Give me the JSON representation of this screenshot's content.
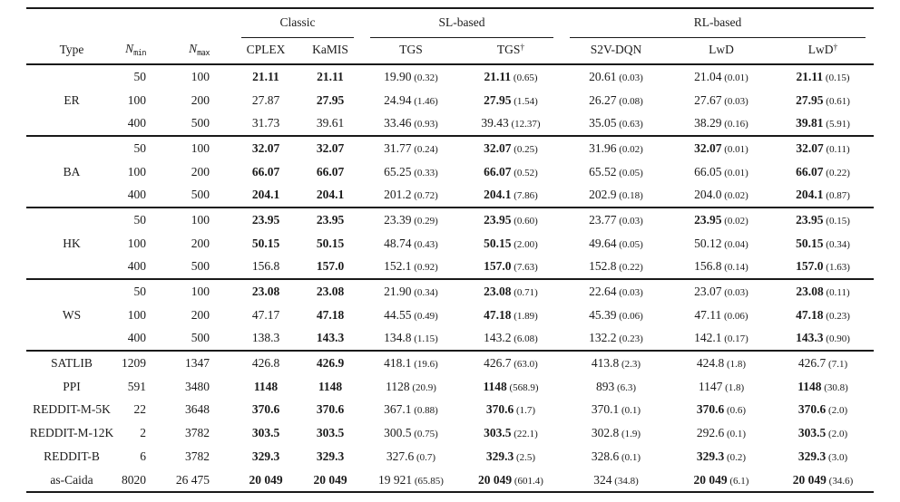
{
  "page": {
    "background": "#ffffff",
    "text_color": "#1b1b1b",
    "rule_color": "#191919"
  },
  "table": {
    "columns": {
      "type_label": "Type",
      "nmin": {
        "base": "N",
        "sub": "min"
      },
      "nmax": {
        "base": "N",
        "sub": "max"
      }
    },
    "groups": [
      {
        "label": "Classic",
        "columns": [
          {
            "name": "CPLEX",
            "sup": ""
          },
          {
            "name": "KaMIS",
            "sup": ""
          }
        ]
      },
      {
        "label": "SL-based",
        "columns": [
          {
            "name": "TGS",
            "sup": ""
          },
          {
            "name": "TGS",
            "sup": "†"
          }
        ]
      },
      {
        "label": "RL-based",
        "columns": [
          {
            "name": "S2V-DQN",
            "sup": ""
          },
          {
            "name": "LwD",
            "sup": ""
          },
          {
            "name": "LwD",
            "sup": "†"
          }
        ]
      }
    ],
    "value_column_keys": [
      "CPLEX",
      "KaMIS",
      "TGS",
      "TGS-dagger",
      "S2V-DQN",
      "LwD",
      "LwD-dagger"
    ],
    "blocks": [
      {
        "type": "ER",
        "rows": [
          {
            "nmin": "50",
            "nmax": "100",
            "cells": [
              {
                "v": "21.11",
                "b": true
              },
              {
                "v": "21.11",
                "b": true
              },
              {
                "v": "19.90",
                "s": "(0.32)"
              },
              {
                "v": "21.11",
                "s": "(0.65)",
                "b": true
              },
              {
                "v": "20.61",
                "s": "(0.03)"
              },
              {
                "v": "21.04",
                "s": "(0.01)"
              },
              {
                "v": "21.11",
                "s": "(0.15)",
                "b": true
              }
            ]
          },
          {
            "nmin": "100",
            "nmax": "200",
            "cells": [
              {
                "v": "27.87"
              },
              {
                "v": "27.95",
                "b": true
              },
              {
                "v": "24.94",
                "s": "(1.46)"
              },
              {
                "v": "27.95",
                "s": "(1.54)",
                "b": true
              },
              {
                "v": "26.27",
                "s": "(0.08)"
              },
              {
                "v": "27.67",
                "s": "(0.03)"
              },
              {
                "v": "27.95",
                "s": "(0.61)",
                "b": true
              }
            ]
          },
          {
            "nmin": "400",
            "nmax": "500",
            "cells": [
              {
                "v": "31.73"
              },
              {
                "v": "39.61"
              },
              {
                "v": "33.46",
                "s": "(0.93)"
              },
              {
                "v": "39.43",
                "s": "(12.37)"
              },
              {
                "v": "35.05",
                "s": "(0.63)"
              },
              {
                "v": "38.29",
                "s": "(0.16)"
              },
              {
                "v": "39.81",
                "s": "(5.91)",
                "b": true
              }
            ]
          }
        ]
      },
      {
        "type": "BA",
        "rows": [
          {
            "nmin": "50",
            "nmax": "100",
            "cells": [
              {
                "v": "32.07",
                "b": true
              },
              {
                "v": "32.07",
                "b": true
              },
              {
                "v": "31.77",
                "s": "(0.24)"
              },
              {
                "v": "32.07",
                "s": "(0.25)",
                "b": true
              },
              {
                "v": "31.96",
                "s": "(0.02)"
              },
              {
                "v": "32.07",
                "s": "(0.01)",
                "b": true
              },
              {
                "v": "32.07",
                "s": "(0.11)",
                "b": true
              }
            ]
          },
          {
            "nmin": "100",
            "nmax": "200",
            "cells": [
              {
                "v": "66.07",
                "b": true
              },
              {
                "v": "66.07",
                "b": true
              },
              {
                "v": "65.25",
                "s": "(0.33)"
              },
              {
                "v": "66.07",
                "s": "(0.52)",
                "b": true
              },
              {
                "v": "65.52",
                "s": "(0.05)"
              },
              {
                "v": "66.05",
                "s": "(0.01)"
              },
              {
                "v": "66.07",
                "s": "(0.22)",
                "b": true
              }
            ]
          },
          {
            "nmin": "400",
            "nmax": "500",
            "cells": [
              {
                "v": "204.1",
                "b": true
              },
              {
                "v": "204.1",
                "b": true
              },
              {
                "v": "201.2",
                "s": "(0.72)"
              },
              {
                "v": "204.1",
                "s": "(7.86)",
                "b": true
              },
              {
                "v": "202.9",
                "s": "(0.18)"
              },
              {
                "v": "204.0",
                "s": "(0.02)"
              },
              {
                "v": "204.1",
                "s": "(0.87)",
                "b": true
              }
            ]
          }
        ]
      },
      {
        "type": "HK",
        "rows": [
          {
            "nmin": "50",
            "nmax": "100",
            "cells": [
              {
                "v": "23.95",
                "b": true
              },
              {
                "v": "23.95",
                "b": true
              },
              {
                "v": "23.39",
                "s": "(0.29)"
              },
              {
                "v": "23.95",
                "s": "(0.60)",
                "b": true
              },
              {
                "v": "23.77",
                "s": "(0.03)"
              },
              {
                "v": "23.95",
                "s": "(0.02)",
                "b": true
              },
              {
                "v": "23.95",
                "s": "(0.15)",
                "b": true
              }
            ]
          },
          {
            "nmin": "100",
            "nmax": "200",
            "cells": [
              {
                "v": "50.15",
                "b": true
              },
              {
                "v": "50.15",
                "b": true
              },
              {
                "v": "48.74",
                "s": "(0.43)"
              },
              {
                "v": "50.15",
                "s": "(2.00)",
                "b": true
              },
              {
                "v": "49.64",
                "s": "(0.05)"
              },
              {
                "v": "50.12",
                "s": "(0.04)"
              },
              {
                "v": "50.15",
                "s": "(0.34)",
                "b": true
              }
            ]
          },
          {
            "nmin": "400",
            "nmax": "500",
            "cells": [
              {
                "v": "156.8"
              },
              {
                "v": "157.0",
                "b": true
              },
              {
                "v": "152.1",
                "s": "(0.92)"
              },
              {
                "v": "157.0",
                "s": "(7.63)",
                "b": true
              },
              {
                "v": "152.8",
                "s": "(0.22)"
              },
              {
                "v": "156.8",
                "s": "(0.14)"
              },
              {
                "v": "157.0",
                "s": "(1.63)",
                "b": true
              }
            ]
          }
        ]
      },
      {
        "type": "WS",
        "rows": [
          {
            "nmin": "50",
            "nmax": "100",
            "cells": [
              {
                "v": "23.08",
                "b": true
              },
              {
                "v": "23.08",
                "b": true
              },
              {
                "v": "21.90",
                "s": "(0.34)"
              },
              {
                "v": "23.08",
                "s": "(0.71)",
                "b": true
              },
              {
                "v": "22.64",
                "s": "(0.03)"
              },
              {
                "v": "23.07",
                "s": "(0.03)"
              },
              {
                "v": "23.08",
                "s": "(0.11)",
                "b": true
              }
            ]
          },
          {
            "nmin": "100",
            "nmax": "200",
            "cells": [
              {
                "v": "47.17"
              },
              {
                "v": "47.18",
                "b": true
              },
              {
                "v": "44.55",
                "s": "(0.49)"
              },
              {
                "v": "47.18",
                "s": "(1.89)",
                "b": true
              },
              {
                "v": "45.39",
                "s": "(0.06)"
              },
              {
                "v": "47.11",
                "s": "(0.06)"
              },
              {
                "v": "47.18",
                "s": "(0.23)",
                "b": true
              }
            ]
          },
          {
            "nmin": "400",
            "nmax": "500",
            "cells": [
              {
                "v": "138.3"
              },
              {
                "v": "143.3",
                "b": true
              },
              {
                "v": "134.8",
                "s": "(1.15)"
              },
              {
                "v": "143.2",
                "s": "(6.08)"
              },
              {
                "v": "132.2",
                "s": "(0.23)"
              },
              {
                "v": "142.1",
                "s": "(0.17)"
              },
              {
                "v": "143.3",
                "s": "(0.90)",
                "b": true
              }
            ]
          }
        ]
      }
    ],
    "dataset_rows": [
      {
        "type": "SATLIB",
        "nmin": "1209",
        "nmax": "1347",
        "cells": [
          {
            "v": "426.8"
          },
          {
            "v": "426.9",
            "b": true
          },
          {
            "v": "418.1",
            "s": "(19.6)"
          },
          {
            "v": "426.7",
            "s": "(63.0)"
          },
          {
            "v": "413.8",
            "s": "(2.3)"
          },
          {
            "v": "424.8",
            "s": "(1.8)"
          },
          {
            "v": "426.7",
            "s": "(7.1)"
          }
        ]
      },
      {
        "type": "PPI",
        "nmin": "591",
        "nmax": "3480",
        "cells": [
          {
            "v": "1148",
            "b": true
          },
          {
            "v": "1148",
            "b": true
          },
          {
            "v": "1128",
            "s": "(20.9)"
          },
          {
            "v": "1148",
            "s": "(568.9)",
            "b": true
          },
          {
            "v": "893",
            "s": "(6.3)"
          },
          {
            "v": "1147",
            "s": "(1.8)"
          },
          {
            "v": "1148",
            "s": "(30.8)",
            "b": true
          }
        ]
      },
      {
        "type": "REDDIT-M-5K",
        "nmin": "22",
        "nmax": "3648",
        "cells": [
          {
            "v": "370.6",
            "b": true
          },
          {
            "v": "370.6",
            "b": true
          },
          {
            "v": "367.1",
            "s": "(0.88)"
          },
          {
            "v": "370.6",
            "s": "(1.7)",
            "b": true
          },
          {
            "v": "370.1",
            "s": "(0.1)"
          },
          {
            "v": "370.6",
            "s": "(0.6)",
            "b": true
          },
          {
            "v": "370.6",
            "s": "(2.0)",
            "b": true
          }
        ]
      },
      {
        "type": "REDDIT-M-12K",
        "nmin": "2",
        "nmax": "3782",
        "cells": [
          {
            "v": "303.5",
            "b": true
          },
          {
            "v": "303.5",
            "b": true
          },
          {
            "v": "300.5",
            "s": "(0.75)"
          },
          {
            "v": "303.5",
            "s": "(22.1)",
            "b": true
          },
          {
            "v": "302.8",
            "s": "(1.9)"
          },
          {
            "v": "292.6",
            "s": "(0.1)"
          },
          {
            "v": "303.5",
            "s": "(2.0)",
            "b": true
          }
        ]
      },
      {
        "type": "REDDIT-B",
        "nmin": "6",
        "nmax": "3782",
        "cells": [
          {
            "v": "329.3",
            "b": true
          },
          {
            "v": "329.3",
            "b": true
          },
          {
            "v": "327.6",
            "s": "(0.7)"
          },
          {
            "v": "329.3",
            "s": "(2.5)",
            "b": true
          },
          {
            "v": "328.6",
            "s": "(0.1)"
          },
          {
            "v": "329.3",
            "s": "(0.2)",
            "b": true
          },
          {
            "v": "329.3",
            "s": "(3.0)",
            "b": true
          }
        ]
      },
      {
        "type": "as-Caida",
        "nmin": "8020",
        "nmax": "26 475",
        "cells": [
          {
            "v": "20 049",
            "b": true
          },
          {
            "v": "20 049",
            "b": true
          },
          {
            "v": "19 921",
            "s": "(65.85)"
          },
          {
            "v": "20 049",
            "s": "(601.4)",
            "b": true
          },
          {
            "v": "324",
            "s": "(34.8)"
          },
          {
            "v": "20 049",
            "s": "(6.1)",
            "b": true
          },
          {
            "v": "20 049",
            "s": "(34.6)",
            "b": true
          }
        ]
      }
    ]
  }
}
